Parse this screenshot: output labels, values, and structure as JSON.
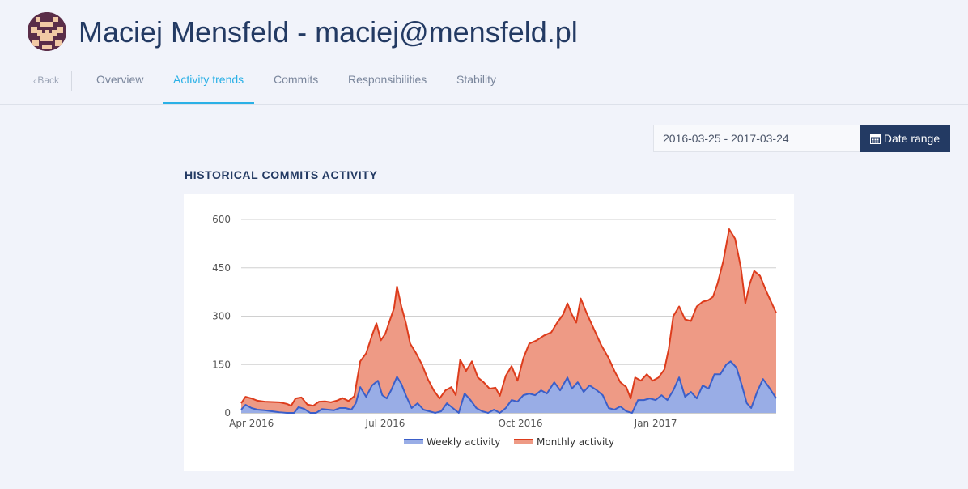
{
  "header": {
    "title": "Maciej Mensfeld - maciej@mensfeld.pl",
    "back_label": "Back"
  },
  "tabs": [
    {
      "label": "Overview",
      "active": false
    },
    {
      "label": "Activity trends",
      "active": true
    },
    {
      "label": "Commits",
      "active": false
    },
    {
      "label": "Responsibilities",
      "active": false
    },
    {
      "label": "Stability",
      "active": false
    }
  ],
  "date_range": {
    "value": "2016-03-25 - 2017-03-24",
    "button_label": "Date range"
  },
  "section": {
    "title": "HISTORICAL COMMITS ACTIVITY"
  },
  "colors": {
    "accent": "#2ab0e6",
    "navy": "#233a63",
    "weekly_line": "#3b5fc9",
    "weekly_fill": "#99ade6",
    "monthly_line": "#dd3c1c",
    "monthly_fill": "#ee9a85"
  },
  "chart_data": {
    "type": "area",
    "x_start": "2016-03-25",
    "x_end": "2017-03-24",
    "xticks": [
      {
        "date": "2016-04-01",
        "label": "Apr 2016"
      },
      {
        "date": "2016-07-01",
        "label": "Jul 2016"
      },
      {
        "date": "2016-10-01",
        "label": "Oct 2016"
      },
      {
        "date": "2017-01-01",
        "label": "Jan 2017"
      }
    ],
    "yticks": [
      0,
      150,
      300,
      450,
      600
    ],
    "ylim": [
      0,
      600
    ],
    "grid": true,
    "legend": "bottom",
    "series": [
      {
        "name": "Monthly activity",
        "color": "#dd3c1c",
        "fill": "#ee9a85",
        "points": [
          [
            "2016-03-25",
            30
          ],
          [
            "2016-03-28",
            50
          ],
          [
            "2016-04-01",
            45
          ],
          [
            "2016-04-05",
            38
          ],
          [
            "2016-04-10",
            35
          ],
          [
            "2016-04-15",
            34
          ],
          [
            "2016-04-20",
            33
          ],
          [
            "2016-04-25",
            28
          ],
          [
            "2016-04-28",
            22
          ],
          [
            "2016-05-01",
            45
          ],
          [
            "2016-05-05",
            48
          ],
          [
            "2016-05-09",
            26
          ],
          [
            "2016-05-13",
            22
          ],
          [
            "2016-05-17",
            35
          ],
          [
            "2016-05-21",
            36
          ],
          [
            "2016-05-25",
            33
          ],
          [
            "2016-05-29",
            38
          ],
          [
            "2016-06-02",
            46
          ],
          [
            "2016-06-06",
            37
          ],
          [
            "2016-06-10",
            52
          ],
          [
            "2016-06-14",
            160
          ],
          [
            "2016-06-18",
            185
          ],
          [
            "2016-06-22",
            240
          ],
          [
            "2016-06-25",
            278
          ],
          [
            "2016-06-28",
            225
          ],
          [
            "2016-07-01",
            245
          ],
          [
            "2016-07-04",
            285
          ],
          [
            "2016-07-07",
            325
          ],
          [
            "2016-07-09",
            392
          ],
          [
            "2016-07-12",
            330
          ],
          [
            "2016-07-15",
            280
          ],
          [
            "2016-07-18",
            215
          ],
          [
            "2016-07-22",
            185
          ],
          [
            "2016-07-26",
            150
          ],
          [
            "2016-07-30",
            105
          ],
          [
            "2016-08-03",
            70
          ],
          [
            "2016-08-07",
            45
          ],
          [
            "2016-08-11",
            70
          ],
          [
            "2016-08-15",
            80
          ],
          [
            "2016-08-18",
            55
          ],
          [
            "2016-08-21",
            165
          ],
          [
            "2016-08-25",
            130
          ],
          [
            "2016-08-29",
            160
          ],
          [
            "2016-09-02",
            110
          ],
          [
            "2016-09-06",
            95
          ],
          [
            "2016-09-10",
            75
          ],
          [
            "2016-09-14",
            78
          ],
          [
            "2016-09-17",
            53
          ],
          [
            "2016-09-21",
            115
          ],
          [
            "2016-09-25",
            145
          ],
          [
            "2016-09-29",
            100
          ],
          [
            "2016-10-03",
            170
          ],
          [
            "2016-10-07",
            215
          ],
          [
            "2016-10-12",
            225
          ],
          [
            "2016-10-17",
            240
          ],
          [
            "2016-10-22",
            250
          ],
          [
            "2016-10-26",
            280
          ],
          [
            "2016-10-30",
            305
          ],
          [
            "2016-11-02",
            340
          ],
          [
            "2016-11-05",
            305
          ],
          [
            "2016-11-08",
            280
          ],
          [
            "2016-11-11",
            355
          ],
          [
            "2016-11-15",
            310
          ],
          [
            "2016-11-20",
            260
          ],
          [
            "2016-11-25",
            210
          ],
          [
            "2016-11-30",
            170
          ],
          [
            "2016-12-04",
            130
          ],
          [
            "2016-12-08",
            95
          ],
          [
            "2016-12-12",
            80
          ],
          [
            "2016-12-15",
            45
          ],
          [
            "2016-12-18",
            110
          ],
          [
            "2016-12-22",
            100
          ],
          [
            "2016-12-26",
            120
          ],
          [
            "2016-12-30",
            100
          ],
          [
            "2017-01-03",
            110
          ],
          [
            "2017-01-07",
            135
          ],
          [
            "2017-01-10",
            200
          ],
          [
            "2017-01-13",
            300
          ],
          [
            "2017-01-17",
            330
          ],
          [
            "2017-01-21",
            290
          ],
          [
            "2017-01-25",
            285
          ],
          [
            "2017-01-29",
            330
          ],
          [
            "2017-02-02",
            345
          ],
          [
            "2017-02-06",
            350
          ],
          [
            "2017-02-09",
            360
          ],
          [
            "2017-02-12",
            400
          ],
          [
            "2017-02-16",
            470
          ],
          [
            "2017-02-20",
            570
          ],
          [
            "2017-02-24",
            540
          ],
          [
            "2017-02-28",
            450
          ],
          [
            "2017-03-03",
            340
          ],
          [
            "2017-03-06",
            400
          ],
          [
            "2017-03-09",
            440
          ],
          [
            "2017-03-13",
            425
          ],
          [
            "2017-03-17",
            380
          ],
          [
            "2017-03-20",
            350
          ],
          [
            "2017-03-24",
            310
          ]
        ]
      },
      {
        "name": "Weekly activity",
        "color": "#3b5fc9",
        "fill": "#99ade6",
        "points": [
          [
            "2016-03-25",
            10
          ],
          [
            "2016-03-28",
            25
          ],
          [
            "2016-04-01",
            15
          ],
          [
            "2016-04-05",
            10
          ],
          [
            "2016-04-10",
            8
          ],
          [
            "2016-04-15",
            5
          ],
          [
            "2016-04-20",
            2
          ],
          [
            "2016-04-25",
            0
          ],
          [
            "2016-04-30",
            0
          ],
          [
            "2016-05-03",
            18
          ],
          [
            "2016-05-07",
            12
          ],
          [
            "2016-05-11",
            0
          ],
          [
            "2016-05-15",
            0
          ],
          [
            "2016-05-19",
            12
          ],
          [
            "2016-05-23",
            10
          ],
          [
            "2016-05-27",
            8
          ],
          [
            "2016-05-31",
            15
          ],
          [
            "2016-06-04",
            15
          ],
          [
            "2016-06-08",
            10
          ],
          [
            "2016-06-11",
            30
          ],
          [
            "2016-06-14",
            80
          ],
          [
            "2016-06-18",
            50
          ],
          [
            "2016-06-22",
            85
          ],
          [
            "2016-06-26",
            100
          ],
          [
            "2016-06-29",
            55
          ],
          [
            "2016-07-02",
            45
          ],
          [
            "2016-07-05",
            70
          ],
          [
            "2016-07-09",
            112
          ],
          [
            "2016-07-12",
            90
          ],
          [
            "2016-07-15",
            55
          ],
          [
            "2016-07-19",
            15
          ],
          [
            "2016-07-23",
            30
          ],
          [
            "2016-07-27",
            10
          ],
          [
            "2016-07-31",
            5
          ],
          [
            "2016-08-04",
            0
          ],
          [
            "2016-08-08",
            5
          ],
          [
            "2016-08-12",
            30
          ],
          [
            "2016-08-16",
            15
          ],
          [
            "2016-08-20",
            0
          ],
          [
            "2016-08-24",
            60
          ],
          [
            "2016-08-28",
            40
          ],
          [
            "2016-09-01",
            15
          ],
          [
            "2016-09-05",
            5
          ],
          [
            "2016-09-09",
            0
          ],
          [
            "2016-09-13",
            10
          ],
          [
            "2016-09-17",
            0
          ],
          [
            "2016-09-21",
            15
          ],
          [
            "2016-09-25",
            40
          ],
          [
            "2016-09-29",
            35
          ],
          [
            "2016-10-03",
            55
          ],
          [
            "2016-10-07",
            60
          ],
          [
            "2016-10-11",
            55
          ],
          [
            "2016-10-15",
            70
          ],
          [
            "2016-10-19",
            60
          ],
          [
            "2016-10-24",
            95
          ],
          [
            "2016-10-28",
            70
          ],
          [
            "2016-11-02",
            110
          ],
          [
            "2016-11-05",
            75
          ],
          [
            "2016-11-09",
            95
          ],
          [
            "2016-11-13",
            65
          ],
          [
            "2016-11-17",
            85
          ],
          [
            "2016-11-22",
            70
          ],
          [
            "2016-11-26",
            55
          ],
          [
            "2016-11-30",
            15
          ],
          [
            "2016-12-04",
            10
          ],
          [
            "2016-12-08",
            20
          ],
          [
            "2016-12-12",
            5
          ],
          [
            "2016-12-16",
            0
          ],
          [
            "2016-12-20",
            40
          ],
          [
            "2016-12-24",
            40
          ],
          [
            "2016-12-28",
            45
          ],
          [
            "2017-01-01",
            40
          ],
          [
            "2017-01-05",
            55
          ],
          [
            "2017-01-09",
            40
          ],
          [
            "2017-01-13",
            70
          ],
          [
            "2017-01-17",
            110
          ],
          [
            "2017-01-21",
            50
          ],
          [
            "2017-01-25",
            65
          ],
          [
            "2017-01-29",
            45
          ],
          [
            "2017-02-02",
            85
          ],
          [
            "2017-02-06",
            75
          ],
          [
            "2017-02-10",
            120
          ],
          [
            "2017-02-14",
            120
          ],
          [
            "2017-02-18",
            150
          ],
          [
            "2017-02-21",
            160
          ],
          [
            "2017-02-25",
            140
          ],
          [
            "2017-03-01",
            80
          ],
          [
            "2017-03-04",
            30
          ],
          [
            "2017-03-07",
            15
          ],
          [
            "2017-03-11",
            65
          ],
          [
            "2017-03-15",
            105
          ],
          [
            "2017-03-19",
            80
          ],
          [
            "2017-03-24",
            45
          ]
        ]
      }
    ]
  }
}
